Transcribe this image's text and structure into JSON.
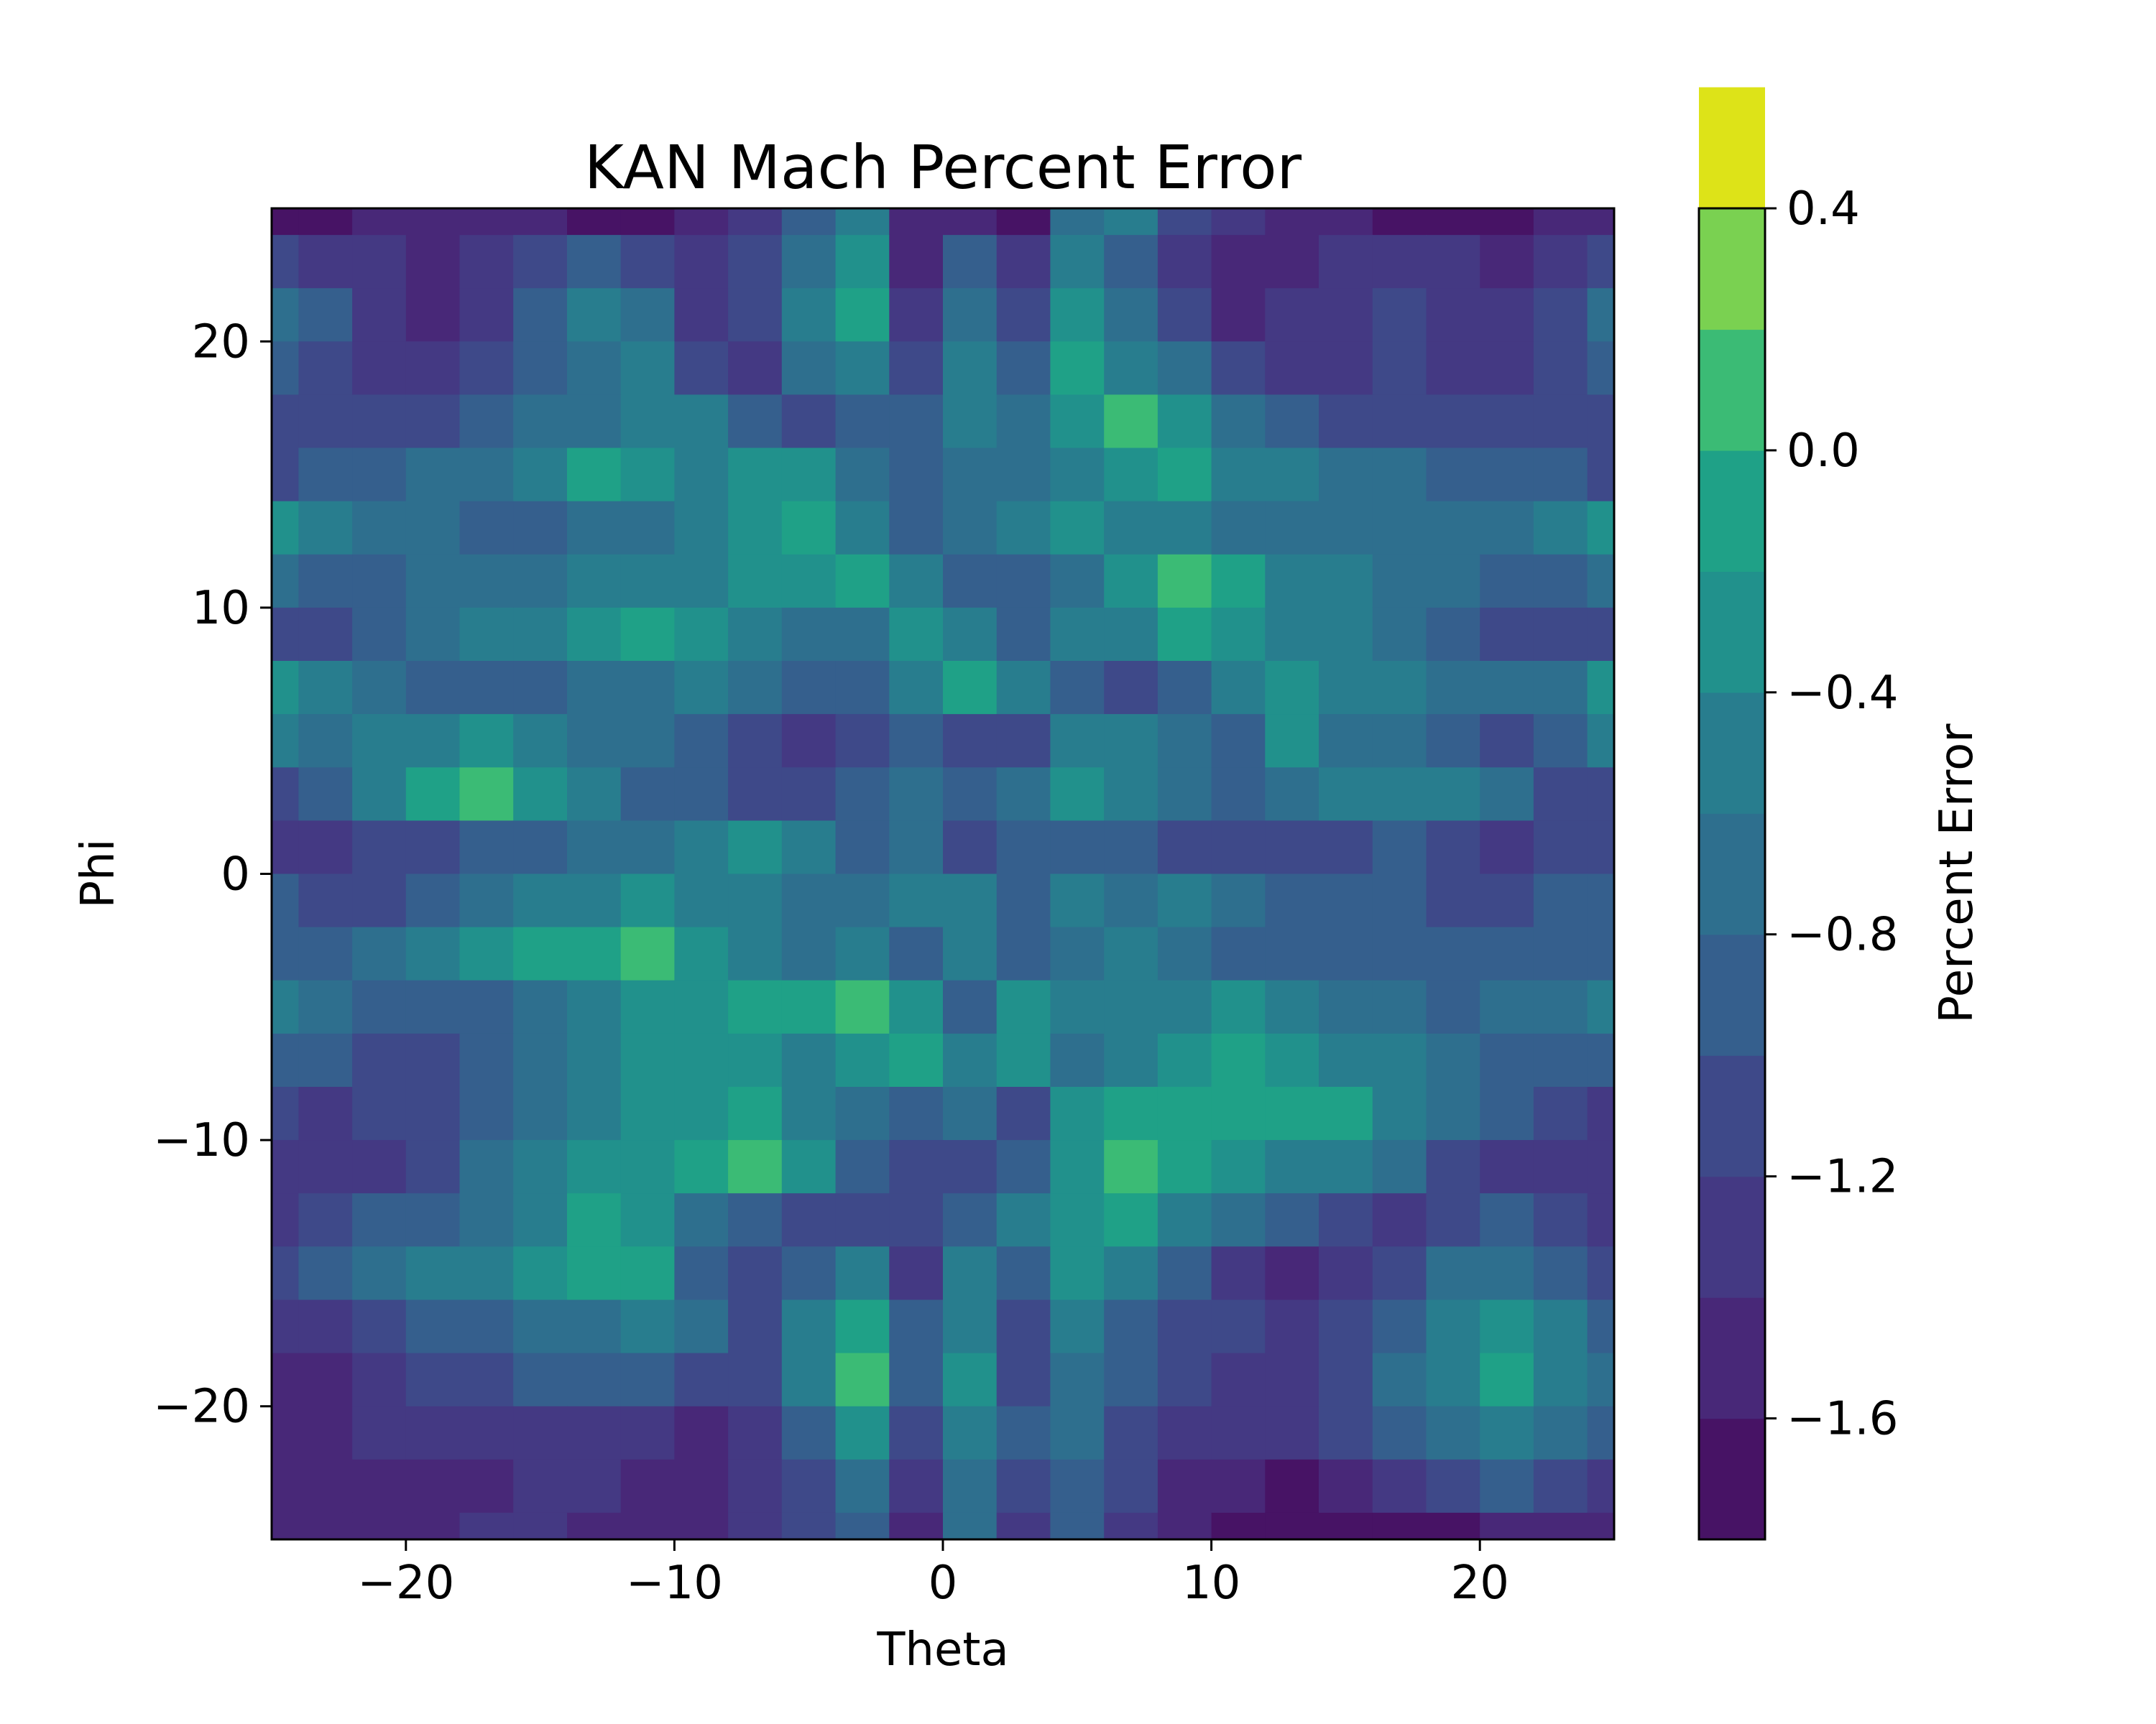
{
  "chart_data": {
    "type": "contourf",
    "title": "KAN Mach Percent Error",
    "xlabel": "Theta",
    "ylabel": "Phi",
    "xlim": [
      -25,
      25
    ],
    "ylim": [
      -25,
      25
    ],
    "xticks": [
      -20,
      -10,
      0,
      10,
      20
    ],
    "yticks": [
      -20,
      -10,
      0,
      10,
      20
    ],
    "xtick_labels": [
      "−20",
      "−10",
      "0",
      "10",
      "20"
    ],
    "ytick_labels": [
      "−20",
      "−10",
      "0",
      "10",
      "20"
    ],
    "colorbar": {
      "label": "Percent Error",
      "range": [
        -1.8,
        0.4
      ],
      "level_step": 0.2,
      "ticks": [
        -1.6,
        -1.2,
        -0.8,
        -0.4,
        0.0,
        0.4
      ],
      "tick_labels": [
        "−1.6",
        "−1.2",
        "−0.8",
        "−0.4",
        "0.0",
        "0.4"
      ],
      "colors": [
        "#471365",
        "#482878",
        "#443983",
        "#3e4989",
        "#355f8d",
        "#2e6f8e",
        "#287d8e",
        "#21918c",
        "#1fa187",
        "#3bbb75",
        "#7ad151",
        "#dde318"
      ]
    },
    "grid_step": 2,
    "z": [
      [
        -1.7,
        -1.7,
        -1.6,
        -1.5,
        -1.6,
        -1.6,
        -1.7,
        -1.7,
        -1.5,
        -1.3,
        -1.0,
        -0.6,
        -1.6,
        -1.5,
        -1.7,
        -0.7,
        -0.6,
        -1.1,
        -1.3,
        -1.5,
        -1.6,
        -1.7,
        -1.7,
        -1.7,
        -1.6,
        -1.6
      ],
      [
        -1.2,
        -1.3,
        -1.4,
        -1.5,
        -1.4,
        -1.2,
        -1.0,
        -1.1,
        -1.4,
        -1.2,
        -0.8,
        -0.4,
        -1.5,
        -1.0,
        -1.3,
        -0.5,
        -0.9,
        -1.3,
        -1.6,
        -1.5,
        -1.4,
        -1.3,
        -1.4,
        -1.5,
        -1.3,
        -1.2
      ],
      [
        -0.7,
        -1.0,
        -1.3,
        -1.5,
        -1.3,
        -0.9,
        -0.6,
        -0.8,
        -1.3,
        -1.1,
        -0.6,
        -0.2,
        -1.4,
        -0.8,
        -1.2,
        -0.3,
        -0.7,
        -1.1,
        -1.5,
        -1.4,
        -1.3,
        -1.1,
        -1.3,
        -1.4,
        -1.1,
        -0.7
      ],
      [
        -1.0,
        -1.1,
        -1.3,
        -1.4,
        -1.2,
        -1.0,
        -0.7,
        -0.6,
        -1.1,
        -1.3,
        -0.8,
        -0.5,
        -1.1,
        -0.6,
        -0.9,
        -0.2,
        -0.5,
        -0.8,
        -1.2,
        -1.3,
        -1.4,
        -1.2,
        -1.3,
        -1.4,
        -1.2,
        -1.0
      ],
      [
        -1.2,
        -1.2,
        -1.2,
        -1.1,
        -1.0,
        -0.8,
        -0.7,
        -0.5,
        -0.6,
        -0.9,
        -1.1,
        -0.9,
        -1.0,
        -0.6,
        -0.8,
        -0.4,
        0.0,
        -0.4,
        -0.7,
        -1.0,
        -1.1,
        -1.1,
        -1.2,
        -1.2,
        -1.2,
        -1.2
      ],
      [
        -1.1,
        -1.0,
        -0.9,
        -0.8,
        -0.7,
        -0.5,
        -0.2,
        -0.4,
        -0.5,
        -0.3,
        -0.4,
        -0.7,
        -1.0,
        -0.8,
        -0.7,
        -0.5,
        -0.3,
        -0.2,
        -0.5,
        -0.6,
        -0.7,
        -0.8,
        -0.9,
        -1.0,
        -1.0,
        -1.1
      ],
      [
        -0.3,
        -0.5,
        -0.7,
        -0.8,
        -0.9,
        -0.9,
        -0.8,
        -0.7,
        -0.5,
        -0.3,
        -0.1,
        -0.6,
        -0.9,
        -0.8,
        -0.6,
        -0.4,
        -0.5,
        -0.6,
        -0.7,
        -0.8,
        -0.8,
        -0.8,
        -0.8,
        -0.7,
        -0.5,
        -0.3
      ],
      [
        -0.8,
        -0.9,
        -0.9,
        -0.8,
        -0.7,
        -0.7,
        -0.6,
        -0.5,
        -0.5,
        -0.4,
        -0.3,
        -0.2,
        -0.6,
        -0.9,
        -1.0,
        -0.8,
        -0.3,
        0.1,
        -0.2,
        -0.5,
        -0.6,
        -0.7,
        -0.8,
        -0.9,
        -0.9,
        -0.8
      ],
      [
        -1.2,
        -1.1,
        -0.9,
        -0.8,
        -0.6,
        -0.5,
        -0.3,
        -0.1,
        -0.3,
        -0.6,
        -0.8,
        -0.7,
        -0.3,
        -0.6,
        -0.9,
        -0.6,
        -0.5,
        -0.2,
        -0.3,
        -0.5,
        -0.6,
        -0.8,
        -0.9,
        -1.1,
        -1.2,
        -1.2
      ],
      [
        -0.4,
        -0.6,
        -0.8,
        -0.9,
        -1.0,
        -0.9,
        -0.8,
        -0.7,
        -0.6,
        -0.7,
        -0.9,
        -0.9,
        -0.5,
        -0.2,
        -0.6,
        -0.9,
        -1.1,
        -0.9,
        -0.6,
        -0.4,
        -0.5,
        -0.6,
        -0.7,
        -0.8,
        -0.7,
        -0.4
      ],
      [
        -0.6,
        -0.8,
        -0.6,
        -0.5,
        -0.4,
        -0.5,
        -0.7,
        -0.8,
        -1.0,
        -1.2,
        -1.3,
        -1.2,
        -1.0,
        -1.2,
        -1.1,
        -0.5,
        -0.6,
        -0.8,
        -1.0,
        -0.4,
        -0.7,
        -0.8,
        -0.9,
        -1.1,
        -1.0,
        -0.6
      ],
      [
        -1.2,
        -1.0,
        -0.6,
        -0.2,
        0.1,
        -0.3,
        -0.6,
        -0.9,
        -1.0,
        -1.1,
        -1.2,
        -1.0,
        -0.8,
        -1.0,
        -0.8,
        -0.3,
        -0.5,
        -0.8,
        -1.0,
        -0.7,
        -0.6,
        -0.5,
        -0.6,
        -0.8,
        -1.1,
        -1.2
      ],
      [
        -1.3,
        -1.3,
        -1.2,
        -1.1,
        -1.0,
        -0.9,
        -0.8,
        -0.7,
        -0.6,
        -0.4,
        -0.5,
        -1.0,
        -0.8,
        -1.2,
        -0.9,
        -0.9,
        -1.0,
        -1.1,
        -1.2,
        -1.1,
        -1.1,
        -1.0,
        -1.2,
        -1.3,
        -1.2,
        -1.2
      ],
      [
        -1.0,
        -1.1,
        -1.2,
        -1.0,
        -0.8,
        -0.6,
        -0.5,
        -0.4,
        -0.5,
        -0.6,
        -0.7,
        -0.8,
        -0.6,
        -0.6,
        -1.0,
        -0.6,
        -0.7,
        -0.5,
        -0.7,
        -0.9,
        -1.0,
        -1.0,
        -1.1,
        -1.1,
        -1.0,
        -1.0
      ],
      [
        -1.0,
        -1.0,
        -0.8,
        -0.6,
        -0.4,
        -0.2,
        -0.1,
        0.0,
        -0.3,
        -0.5,
        -0.7,
        -0.6,
        -0.9,
        -0.6,
        -0.9,
        -0.8,
        -0.5,
        -0.7,
        -0.9,
        -1.0,
        -1.0,
        -0.9,
        -0.9,
        -1.0,
        -1.0,
        -1.0
      ],
      [
        -0.6,
        -0.8,
        -0.9,
        -0.9,
        -0.9,
        -0.8,
        -0.6,
        -0.4,
        -0.3,
        -0.2,
        -0.2,
        0.0,
        -0.4,
        -0.9,
        -0.4,
        -0.6,
        -0.6,
        -0.5,
        -0.4,
        -0.6,
        -0.7,
        -0.8,
        -0.9,
        -0.8,
        -0.7,
        -0.6
      ],
      [
        -0.9,
        -1.0,
        -1.1,
        -1.1,
        -1.0,
        -0.8,
        -0.6,
        -0.4,
        -0.3,
        -0.4,
        -0.5,
        -0.3,
        -0.2,
        -0.6,
        -0.3,
        -0.7,
        -0.5,
        -0.3,
        -0.2,
        -0.3,
        -0.5,
        -0.6,
        -0.8,
        -0.9,
        -0.9,
        -0.9
      ],
      [
        -1.2,
        -1.3,
        -1.2,
        -1.1,
        -0.9,
        -0.8,
        -0.6,
        -0.4,
        -0.3,
        -0.1,
        -0.6,
        -0.7,
        -1.0,
        -0.8,
        -1.1,
        -0.4,
        -0.1,
        -0.1,
        -0.2,
        -0.2,
        -0.2,
        -0.5,
        -0.8,
        -1.0,
        -1.2,
        -1.3
      ],
      [
        -1.3,
        -1.4,
        -1.3,
        -1.1,
        -0.8,
        -0.6,
        -0.4,
        -0.3,
        -0.2,
        0.0,
        -0.4,
        -0.9,
        -1.1,
        -1.2,
        -0.9,
        -0.3,
        0.0,
        -0.2,
        -0.4,
        -0.6,
        -0.6,
        -0.8,
        -1.1,
        -1.3,
        -1.4,
        -1.3
      ],
      [
        -1.3,
        -1.1,
        -1.0,
        -0.9,
        -0.7,
        -0.5,
        -0.2,
        -0.4,
        -0.7,
        -0.9,
        -1.1,
        -1.1,
        -1.2,
        -0.9,
        -0.6,
        -0.4,
        -0.1,
        -0.5,
        -0.8,
        -1.0,
        -1.2,
        -1.3,
        -1.2,
        -1.0,
        -1.1,
        -1.3
      ],
      [
        -1.2,
        -1.0,
        -0.8,
        -0.6,
        -0.5,
        -0.3,
        -0.2,
        -0.2,
        -0.9,
        -1.2,
        -1.0,
        -0.6,
        -1.3,
        -0.6,
        -1.0,
        -0.4,
        -0.6,
        -1.0,
        -1.3,
        -1.5,
        -1.4,
        -1.1,
        -0.8,
        -0.7,
        -0.9,
        -1.2
      ],
      [
        -1.4,
        -1.3,
        -1.1,
        -1.0,
        -0.9,
        -0.8,
        -0.7,
        -0.6,
        -0.8,
        -1.1,
        -0.5,
        -0.2,
        -1.0,
        -0.5,
        -1.2,
        -0.6,
        -0.9,
        -1.2,
        -1.2,
        -1.3,
        -1.1,
        -0.9,
        -0.6,
        -0.4,
        -0.6,
        -1.0
      ],
      [
        -1.6,
        -1.5,
        -1.4,
        -1.2,
        -1.1,
        -1.0,
        -1.0,
        -1.0,
        -1.1,
        -1.2,
        -0.6,
        0.1,
        -0.9,
        -0.3,
        -1.1,
        -0.7,
        -1.0,
        -1.2,
        -1.3,
        -1.3,
        -1.1,
        -0.8,
        -0.5,
        -0.2,
        -0.5,
        -0.8
      ],
      [
        -1.6,
        -1.5,
        -1.4,
        -1.4,
        -1.3,
        -1.3,
        -1.3,
        -1.4,
        -1.5,
        -1.3,
        -0.9,
        -0.4,
        -1.2,
        -0.5,
        -1.0,
        -0.8,
        -1.1,
        -1.3,
        -1.4,
        -1.4,
        -1.2,
        -1.0,
        -0.7,
        -0.5,
        -0.7,
        -1.0
      ],
      [
        -1.6,
        -1.6,
        -1.6,
        -1.5,
        -1.5,
        -1.4,
        -1.4,
        -1.5,
        -1.5,
        -1.4,
        -1.1,
        -0.7,
        -1.4,
        -0.7,
        -1.1,
        -0.9,
        -1.2,
        -1.5,
        -1.6,
        -1.7,
        -1.6,
        -1.4,
        -1.2,
        -1.0,
        -1.2,
        -1.4
      ],
      [
        -1.6,
        -1.6,
        -1.6,
        -1.5,
        -1.4,
        -1.4,
        -1.5,
        -1.6,
        -1.5,
        -1.4,
        -1.2,
        -0.9,
        -1.5,
        -0.8,
        -1.3,
        -1.0,
        -1.3,
        -1.6,
        -1.7,
        -1.8,
        -1.8,
        -1.8,
        -1.7,
        -1.6,
        -1.6,
        -1.6
      ]
    ]
  }
}
